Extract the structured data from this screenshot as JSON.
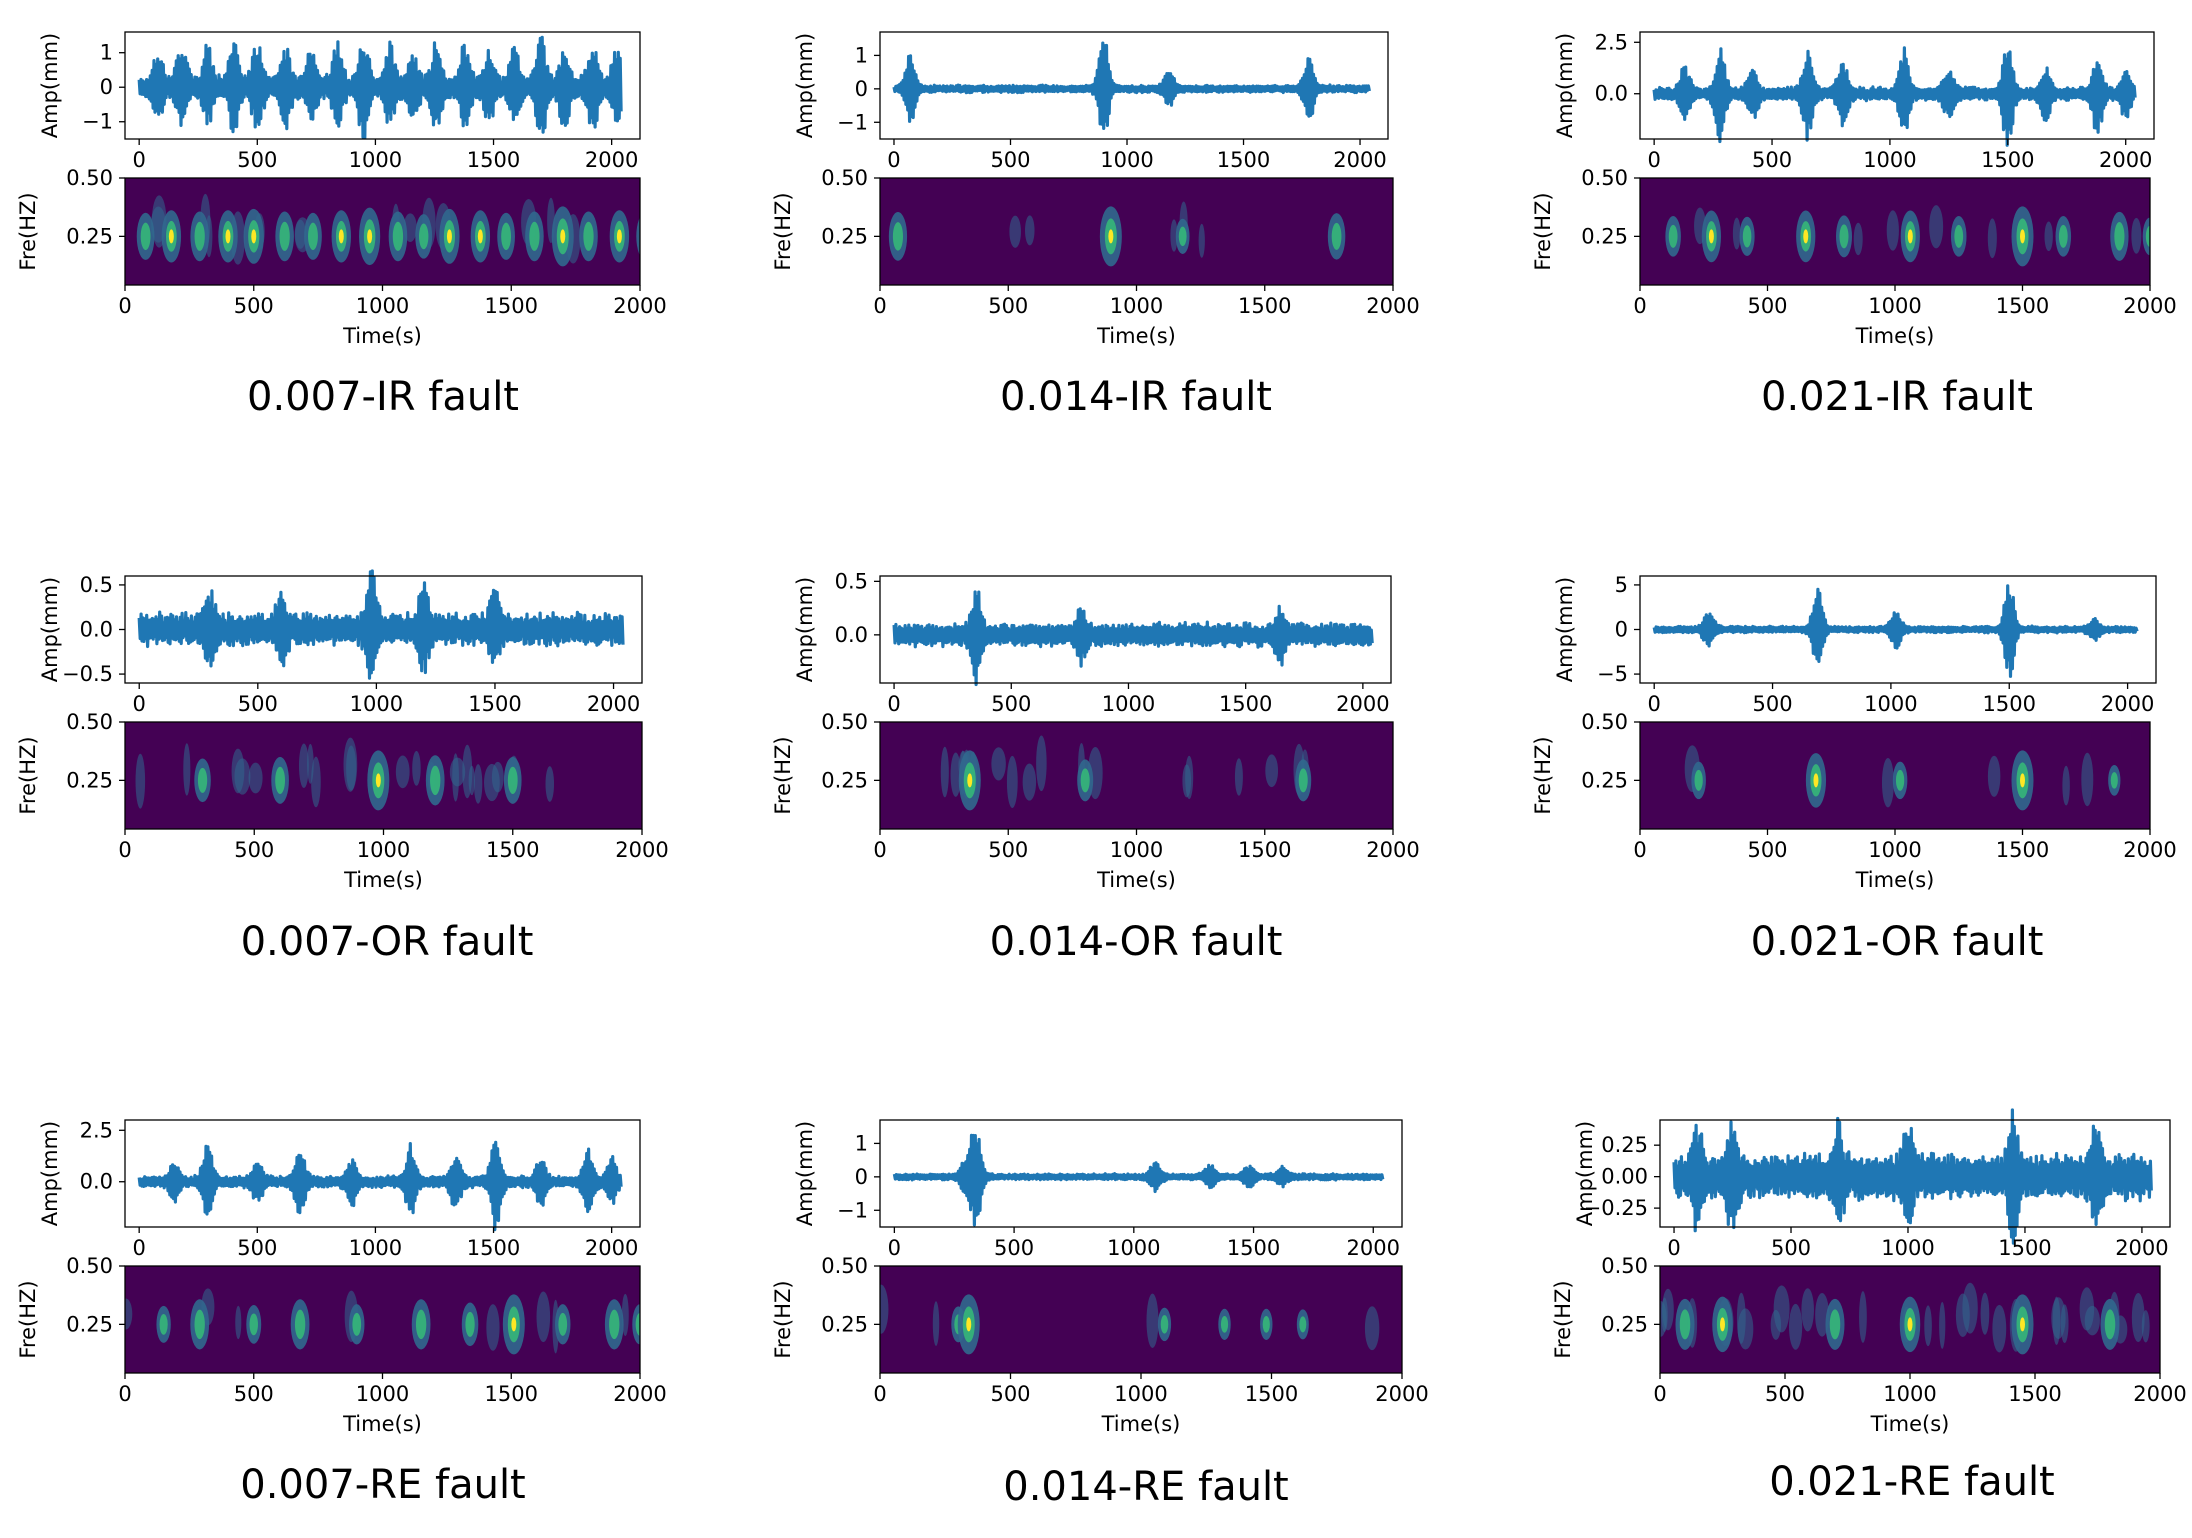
{
  "figure": {
    "colors": {
      "signal": "#1f77b4",
      "spec_bg": "#440154",
      "spec_mid": "#31688e",
      "spec_hi": "#35b779",
      "spec_peak": "#fde725"
    }
  },
  "chart_data": [
    {
      "id": "ir007",
      "caption": "0.007-IR fault",
      "type": "line",
      "signal": {
        "ylabel": "Amp(mm)",
        "yticks": [
          "1",
          "0",
          "−1"
        ],
        "ytick_values": [
          1,
          0,
          -1
        ],
        "ylim": [
          -1.5,
          1.6
        ],
        "xlim": [
          -60,
          2120
        ],
        "xticks": [
          0,
          500,
          1000,
          1500,
          2000
        ],
        "envelope": 0.35,
        "bursts": [
          [
            80,
            0.9
          ],
          [
            180,
            1.1
          ],
          [
            290,
            1.0
          ],
          [
            400,
            1.1
          ],
          [
            500,
            1.2
          ],
          [
            620,
            1.0
          ],
          [
            730,
            0.9
          ],
          [
            840,
            1.1
          ],
          [
            950,
            1.3
          ],
          [
            1060,
            1.0
          ],
          [
            1160,
            0.8
          ],
          [
            1260,
            1.2
          ],
          [
            1380,
            1.1
          ],
          [
            1480,
            0.9
          ],
          [
            1590,
            1.0
          ],
          [
            1700,
            1.4
          ],
          [
            1800,
            1.0
          ],
          [
            1920,
            1.1
          ],
          [
            2020,
            0.9
          ]
        ]
      },
      "spectrogram": {
        "ylabel": "Fre(HZ)",
        "xlabel": "Time(s)",
        "yticks": [
          "0.50",
          "0.25"
        ],
        "ytick_values": [
          0.5,
          0.25
        ],
        "xticks": [
          0,
          500,
          1000,
          1500,
          2000
        ],
        "xlim": [
          0,
          2000
        ]
      }
    },
    {
      "id": "ir014",
      "caption": "0.014-IR fault",
      "type": "line",
      "signal": {
        "ylabel": "Amp(mm)",
        "yticks": [
          "1",
          "0",
          "−1"
        ],
        "ytick_values": [
          1,
          0,
          -1
        ],
        "ylim": [
          -1.5,
          1.7
        ],
        "xlim": [
          -60,
          2120
        ],
        "xticks": [
          0,
          500,
          1000,
          1500,
          2000
        ],
        "envelope": 0.12,
        "bursts": [
          [
            70,
            1.1
          ],
          [
            900,
            1.6
          ],
          [
            1180,
            0.5
          ],
          [
            1780,
            1.0
          ]
        ]
      },
      "spectrogram": {
        "ylabel": "Fre(HZ)",
        "xlabel": "Time(s)",
        "yticks": [
          "0.50",
          "0.25"
        ],
        "ytick_values": [
          0.5,
          0.25
        ],
        "xticks": [
          0,
          500,
          1000,
          1500,
          2000
        ],
        "xlim": [
          0,
          2000
        ]
      }
    },
    {
      "id": "ir021",
      "caption": "0.021-IR fault",
      "type": "line",
      "signal": {
        "ylabel": "Amp(mm)",
        "yticks": [
          "2.5",
          "0.0"
        ],
        "ytick_values": [
          2.5,
          0
        ],
        "ylim": [
          -2.2,
          3.0
        ],
        "xlim": [
          -60,
          2120
        ],
        "xticks": [
          0,
          500,
          1000,
          1500,
          2000
        ],
        "envelope": 0.35,
        "bursts": [
          [
            130,
            1.2
          ],
          [
            280,
            2.0
          ],
          [
            420,
            1.1
          ],
          [
            650,
            2.0
          ],
          [
            800,
            1.3
          ],
          [
            1060,
            2.0
          ],
          [
            1250,
            1.2
          ],
          [
            1500,
            2.6
          ],
          [
            1660,
            1.2
          ],
          [
            1880,
            1.8
          ],
          [
            2000,
            1.0
          ]
        ]
      },
      "spectrogram": {
        "ylabel": "Fre(HZ)",
        "xlabel": "Time(s)",
        "yticks": [
          "0.50",
          "0.25"
        ],
        "ytick_values": [
          0.5,
          0.25
        ],
        "xticks": [
          0,
          500,
          1000,
          1500,
          2000
        ],
        "xlim": [
          0,
          2000
        ]
      }
    },
    {
      "id": "or007",
      "caption": "0.007-OR fault",
      "type": "line",
      "signal": {
        "ylabel": "Amp(mm)",
        "yticks": [
          "0.5",
          "0.0",
          "−0.5"
        ],
        "ytick_values": [
          0.5,
          0,
          -0.5
        ],
        "ylim": [
          -0.6,
          0.6
        ],
        "xlim": [
          -60,
          2120
        ],
        "xticks": [
          0,
          500,
          1000,
          1500,
          2000
        ],
        "envelope": 0.2,
        "bursts": [
          [
            300,
            0.3
          ],
          [
            600,
            0.35
          ],
          [
            980,
            0.55
          ],
          [
            1200,
            0.4
          ],
          [
            1500,
            0.35
          ]
        ]
      },
      "spectrogram": {
        "ylabel": "Fre(HZ)",
        "xlabel": "Time(s)",
        "yticks": [
          "0.50",
          "0.25"
        ],
        "ytick_values": [
          0.5,
          0.25
        ],
        "xticks": [
          0,
          500,
          1000,
          1500,
          2000
        ],
        "xlim": [
          0,
          2000
        ]
      }
    },
    {
      "id": "or014",
      "caption": "0.014-OR fault",
      "type": "line",
      "signal": {
        "ylabel": "Amp(mm)",
        "yticks": [
          "0.5",
          "0.0"
        ],
        "ytick_values": [
          0.5,
          0
        ],
        "ylim": [
          -0.45,
          0.55
        ],
        "xlim": [
          -60,
          2120
        ],
        "xticks": [
          0,
          500,
          1000,
          1500,
          2000
        ],
        "envelope": 0.12,
        "bursts": [
          [
            350,
            0.4
          ],
          [
            800,
            0.2
          ],
          [
            1650,
            0.2
          ]
        ]
      },
      "spectrogram": {
        "ylabel": "Fre(HZ)",
        "xlabel": "Time(s)",
        "yticks": [
          "0.50",
          "0.25"
        ],
        "ytick_values": [
          0.5,
          0.25
        ],
        "xticks": [
          0,
          500,
          1000,
          1500,
          2000
        ],
        "xlim": [
          0,
          2000
        ]
      }
    },
    {
      "id": "or021",
      "caption": "0.021-OR fault",
      "type": "line",
      "signal": {
        "ylabel": "Amp(mm)",
        "yticks": [
          "5",
          "0",
          "−5"
        ],
        "ytick_values": [
          5,
          0,
          -5
        ],
        "ylim": [
          -6,
          6
        ],
        "xlim": [
          -60,
          2120
        ],
        "xticks": [
          0,
          500,
          1000,
          1500,
          2000
        ],
        "envelope": 0.4,
        "bursts": [
          [
            230,
            2.0
          ],
          [
            690,
            4.5
          ],
          [
            1020,
            2.0
          ],
          [
            1500,
            5.3
          ],
          [
            1860,
            1.0
          ]
        ]
      },
      "spectrogram": {
        "ylabel": "Fre(HZ)",
        "xlabel": "Time(s)",
        "yticks": [
          "0.50",
          "0.25"
        ],
        "ytick_values": [
          0.5,
          0.25
        ],
        "xticks": [
          0,
          500,
          1000,
          1500,
          2000
        ],
        "xlim": [
          0,
          2000
        ]
      }
    },
    {
      "id": "re007",
      "caption": "0.007-RE fault",
      "type": "line",
      "signal": {
        "ylabel": "Amp(mm)",
        "yticks": [
          "2.5",
          "0.0"
        ],
        "ytick_values": [
          2.5,
          0
        ],
        "ylim": [
          -2.2,
          3.0
        ],
        "xlim": [
          -60,
          2120
        ],
        "xticks": [
          0,
          500,
          1000,
          1500,
          2000
        ],
        "envelope": 0.3,
        "bursts": [
          [
            150,
            0.8
          ],
          [
            290,
            1.6
          ],
          [
            500,
            0.9
          ],
          [
            680,
            1.6
          ],
          [
            900,
            1.0
          ],
          [
            1150,
            1.6
          ],
          [
            1340,
            1.2
          ],
          [
            1510,
            2.2
          ],
          [
            1700,
            1.0
          ],
          [
            1900,
            1.6
          ],
          [
            2000,
            1.0
          ]
        ]
      },
      "spectrogram": {
        "ylabel": "Fre(HZ)",
        "xlabel": "Time(s)",
        "yticks": [
          "0.50",
          "0.25"
        ],
        "ytick_values": [
          0.5,
          0.25
        ],
        "xticks": [
          0,
          500,
          1000,
          1500,
          2000
        ],
        "xlim": [
          0,
          2000
        ]
      }
    },
    {
      "id": "re014",
      "caption": "0.014-RE fault",
      "type": "line",
      "signal": {
        "ylabel": "Amp(mm)",
        "yticks": [
          "1",
          "0",
          "−1"
        ],
        "ytick_values": [
          1,
          0,
          -1
        ],
        "ylim": [
          -1.5,
          1.7
        ],
        "xlim": [
          -60,
          2120
        ],
        "xticks": [
          0,
          500,
          1000,
          1500,
          2000
        ],
        "envelope": 0.1,
        "bursts": [
          [
            300,
            0.5
          ],
          [
            340,
            1.5
          ],
          [
            1090,
            0.4
          ],
          [
            1320,
            0.3
          ],
          [
            1480,
            0.3
          ],
          [
            1620,
            0.25
          ]
        ]
      },
      "spectrogram": {
        "ylabel": "Fre(HZ)",
        "xlabel": "Time(s)",
        "yticks": [
          "0.50",
          "0.25"
        ],
        "ytick_values": [
          0.5,
          0.25
        ],
        "xticks": [
          0,
          500,
          1000,
          1500,
          2000
        ],
        "xlim": [
          0,
          2000
        ]
      }
    },
    {
      "id": "re021",
      "caption": "0.021-RE fault",
      "type": "line",
      "signal": {
        "ylabel": "Amp(mm)",
        "yticks": [
          "0.25",
          "0.00",
          "−0.25"
        ],
        "ytick_values": [
          0.25,
          0,
          -0.25
        ],
        "ylim": [
          -0.4,
          0.45
        ],
        "xlim": [
          -60,
          2120
        ],
        "xticks": [
          0,
          500,
          1000,
          1500,
          2000
        ],
        "envelope": 0.2,
        "bursts": [
          [
            100,
            0.3
          ],
          [
            250,
            0.35
          ],
          [
            700,
            0.3
          ],
          [
            1000,
            0.35
          ],
          [
            1450,
            0.4
          ],
          [
            1800,
            0.3
          ]
        ]
      },
      "spectrogram": {
        "ylabel": "Fre(HZ)",
        "xlabel": "Time(s)",
        "yticks": [
          "0.50",
          "0.25"
        ],
        "ytick_values": [
          0.5,
          0.25
        ],
        "xticks": [
          0,
          500,
          1000,
          1500,
          2000
        ],
        "xlim": [
          0,
          2000
        ]
      }
    }
  ]
}
